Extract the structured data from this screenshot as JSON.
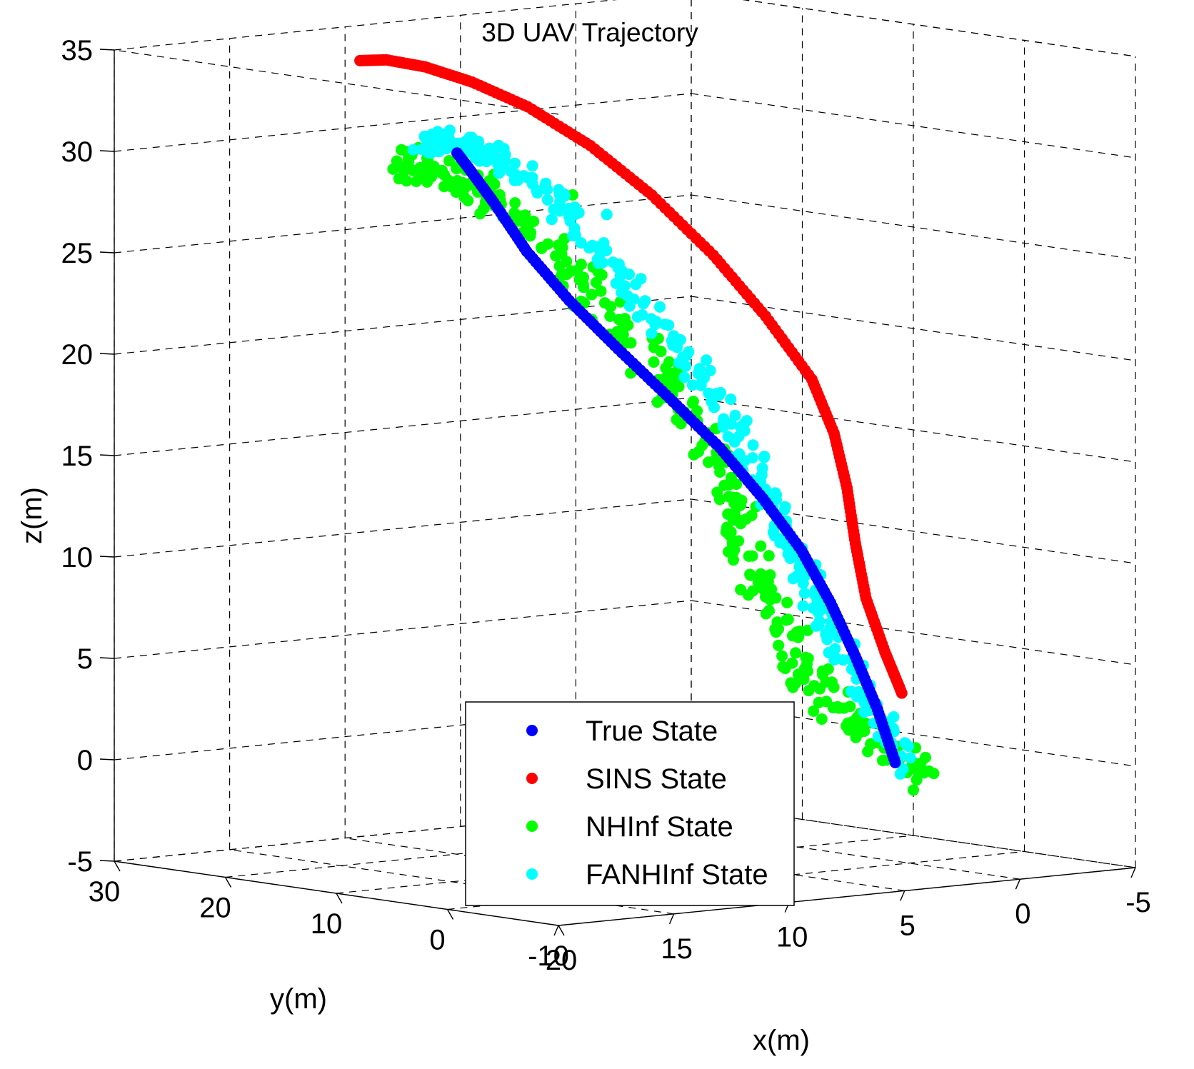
{
  "chart_data": {
    "type": "scatter",
    "projection": "3d",
    "title": "3D UAV Trajectory",
    "xlabel": "x(m)",
    "ylabel": "y(m)",
    "zlabel": "z(m)",
    "xlim": [
      -5,
      20
    ],
    "ylim": [
      -10,
      30
    ],
    "zlim": [
      -5,
      35
    ],
    "xticks": [
      "20",
      "15",
      "10",
      "5",
      "0",
      "-5"
    ],
    "yticks": [
      "30",
      "20",
      "10",
      "0",
      "-10"
    ],
    "zticks": [
      "35",
      "30",
      "25",
      "20",
      "15",
      "10",
      "5",
      "0",
      "-5"
    ],
    "grid": true,
    "legend_position": "bottom-center",
    "series": [
      {
        "name": "True State",
        "color": "#0000ff",
        "x": [
          0.5,
          0.5,
          0.6,
          0.8,
          1.2,
          2.0,
          3.1,
          4.6,
          6.2,
          7.8,
          9.2,
          10.3,
          11.0,
          11.5
        ],
        "y": [
          0.2,
          1.8,
          3.6,
          5.4,
          7.2,
          9.0,
          10.6,
          12.0,
          13.3,
          14.4,
          15.3,
          16.0,
          16.5,
          16.8
        ],
        "z": [
          0.0,
          2.5,
          5.0,
          7.5,
          10.0,
          12.5,
          15.0,
          17.5,
          20.0,
          22.5,
          25.0,
          27.5,
          29.0,
          30.0
        ]
      },
      {
        "name": "SINS State",
        "color": "#ff0000",
        "x": [
          0.6,
          0.9,
          0.9,
          0.4,
          -0.2,
          -0.6,
          -0.6,
          0.2,
          1.5,
          3.2,
          5.0,
          6.9,
          8.6,
          10.0,
          11.2,
          12.0
        ],
        "y": [
          -0.6,
          0.3,
          2.0,
          4.0,
          6.0,
          8.0,
          10.0,
          12.5,
          14.5,
          16.5,
          18.3,
          20.0,
          21.5,
          22.8,
          23.8,
          24.5
        ],
        "z": [
          3.5,
          5.5,
          8.0,
          10.5,
          13.0,
          15.5,
          18.0,
          21.0,
          24.0,
          27.0,
          29.5,
          31.5,
          32.8,
          33.6,
          34.0,
          34.0
        ]
      },
      {
        "name": "NHInf State",
        "color": "#00ff00",
        "x": [
          0.0,
          1.5,
          2.2,
          2.5,
          3.0,
          3.3,
          3.0,
          3.5,
          4.5,
          5.8,
          7.2,
          8.6,
          9.8,
          10.8,
          11.6,
          12.3,
          8.8
        ],
        "y": [
          -2.0,
          0.5,
          2.5,
          4.5,
          6.5,
          8.0,
          9.5,
          11.0,
          12.5,
          13.8,
          15.0,
          16.2,
          17.3,
          18.4,
          19.4,
          20.3,
          12.0
        ],
        "z": [
          -0.5,
          1.0,
          3.0,
          5.0,
          7.5,
          10.0,
          12.5,
          15.0,
          18.0,
          21.0,
          23.5,
          26.0,
          27.5,
          28.5,
          29.0,
          29.3,
          28.0
        ]
      },
      {
        "name": "FANHInf State",
        "color": "#00ffff",
        "x": [
          0.5,
          1.0,
          1.3,
          1.5,
          1.6,
          1.7,
          2.2,
          3.2,
          4.5,
          6.0,
          7.4,
          8.8,
          9.9,
          10.9,
          11.6,
          7.8
        ],
        "y": [
          -1.0,
          1.0,
          3.0,
          5.0,
          7.0,
          9.0,
          10.8,
          12.4,
          13.8,
          15.0,
          16.2,
          17.4,
          18.5,
          19.4,
          20.0,
          11.0
        ],
        "z": [
          0.0,
          2.5,
          5.0,
          7.5,
          10.0,
          12.5,
          15.5,
          18.5,
          21.5,
          24.5,
          27.0,
          29.0,
          30.0,
          30.3,
          30.3,
          27.0
        ]
      }
    ]
  }
}
